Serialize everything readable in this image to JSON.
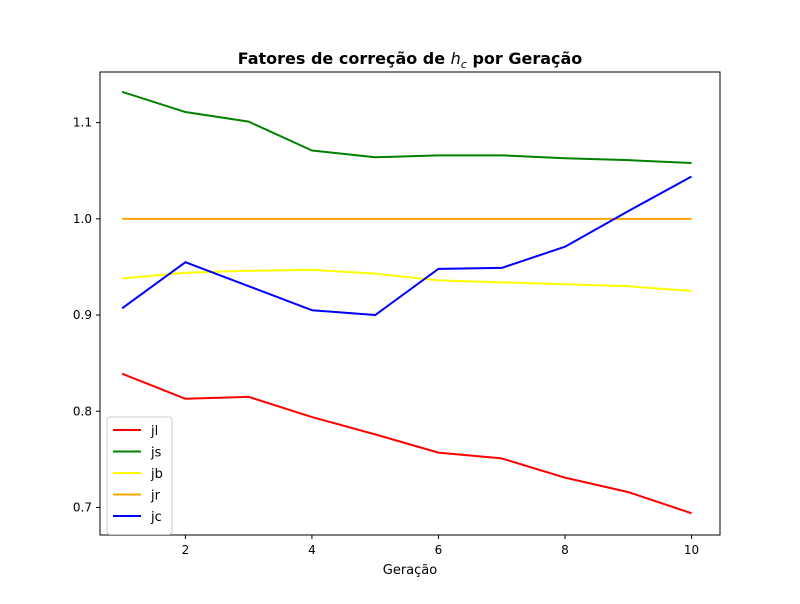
{
  "chart_data": {
    "type": "line",
    "title_prefix": "Fatores de correção de ",
    "title_math_base": "h",
    "title_math_sub": "c",
    "title_suffix": " por Geração",
    "xlabel": "Geração",
    "ylabel": "",
    "xlim": [
      0.65,
      10.45
    ],
    "ylim": [
      0.6714,
      1.1526
    ],
    "xticks": [
      2,
      4,
      6,
      8,
      10
    ],
    "yticks": [
      0.7,
      0.8,
      0.9,
      1.0,
      1.1
    ],
    "ytick_labels": [
      "0.7",
      "0.8",
      "0.9",
      "1.0",
      "1.1"
    ],
    "grid": false,
    "legend_position": "lower-left",
    "x": [
      1,
      2,
      3,
      4,
      5,
      6,
      7,
      8,
      9,
      10
    ],
    "series": [
      {
        "name": "jl",
        "color": "#ff0000",
        "values": [
          0.839,
          0.813,
          0.815,
          0.794,
          0.776,
          0.757,
          0.751,
          0.731,
          0.716,
          0.694
        ]
      },
      {
        "name": "js",
        "color": "#008000",
        "values": [
          1.132,
          1.111,
          1.101,
          1.071,
          1.064,
          1.066,
          1.066,
          1.063,
          1.061,
          1.058
        ]
      },
      {
        "name": "jb",
        "color": "#ffff00",
        "values": [
          0.938,
          0.944,
          0.946,
          0.947,
          0.943,
          0.936,
          0.934,
          0.932,
          0.93,
          0.925
        ]
      },
      {
        "name": "jr",
        "color": "#ffa500",
        "values": [
          1.0,
          1.0,
          1.0,
          1.0,
          1.0,
          1.0,
          1.0,
          1.0,
          1.0,
          1.0
        ]
      },
      {
        "name": "jc",
        "color": "#0000ff",
        "values": [
          0.907,
          0.955,
          0.93,
          0.905,
          0.9,
          0.948,
          0.949,
          0.971,
          1.008,
          1.044
        ]
      }
    ]
  }
}
